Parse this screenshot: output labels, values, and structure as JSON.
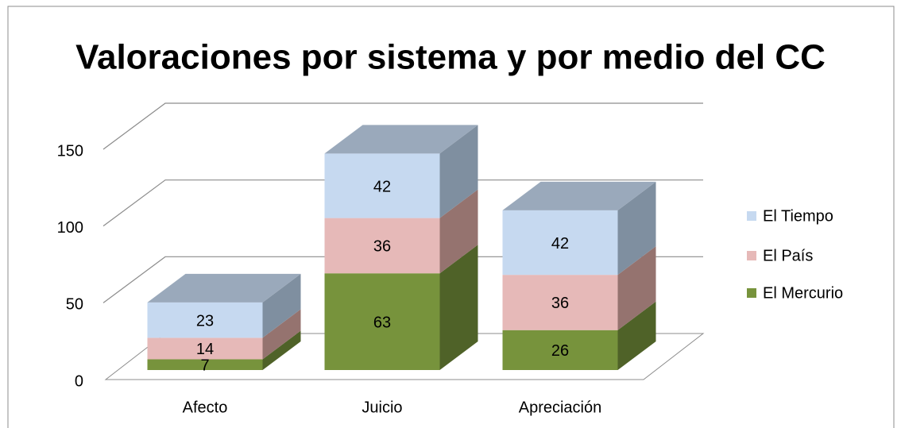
{
  "chart_data": {
    "type": "bar3d_stacked",
    "title": "Valoraciones por sistema y por medio del CC",
    "categories": [
      "Afecto",
      "Juicio",
      "Apreciación"
    ],
    "series": [
      {
        "name": "El Mercurio",
        "color": "#77933c",
        "side": "#4f6228",
        "values": [
          7,
          63,
          26
        ]
      },
      {
        "name": "El País",
        "color": "#e6b9b8",
        "side": "#95736f",
        "values": [
          14,
          36,
          36
        ]
      },
      {
        "name": "El Tiempo",
        "color": "#c6d9f0",
        "side": "#7f8fa0",
        "top": "#9aa9bb",
        "values": [
          23,
          42,
          42
        ]
      }
    ],
    "ylim": [
      0,
      150
    ],
    "yticks": [
      0,
      50,
      100,
      150
    ],
    "grid": true,
    "legend": "right"
  }
}
